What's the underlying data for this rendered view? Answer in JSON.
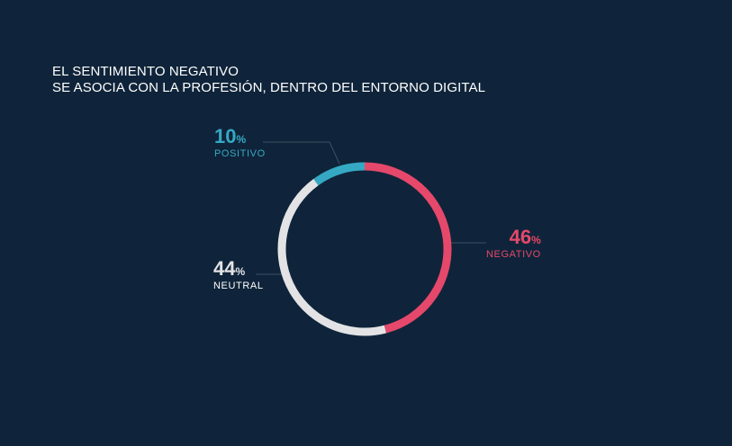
{
  "chart_data": {
    "type": "pie",
    "title_lines": [
      "EL SENTIMIENTO NEGATIVO",
      "SE ASOCIA CON LA PROFESIÓN, DENTRO DEL ENTORNO DIGITAL"
    ],
    "percent_suffix": "%",
    "slices": [
      {
        "label": "NEGATIVO",
        "value": 46,
        "value_text": "46",
        "color": "#e5486a"
      },
      {
        "label": "NEUTRAL",
        "value": 44,
        "value_text": "44",
        "color": "#e3e3e5"
      },
      {
        "label": "POSITIVO",
        "value": 10,
        "value_text": "10",
        "color": "#35a9c4"
      }
    ]
  },
  "colors": {
    "background": "#0f243a",
    "leader_line": "#3d4f63"
  }
}
